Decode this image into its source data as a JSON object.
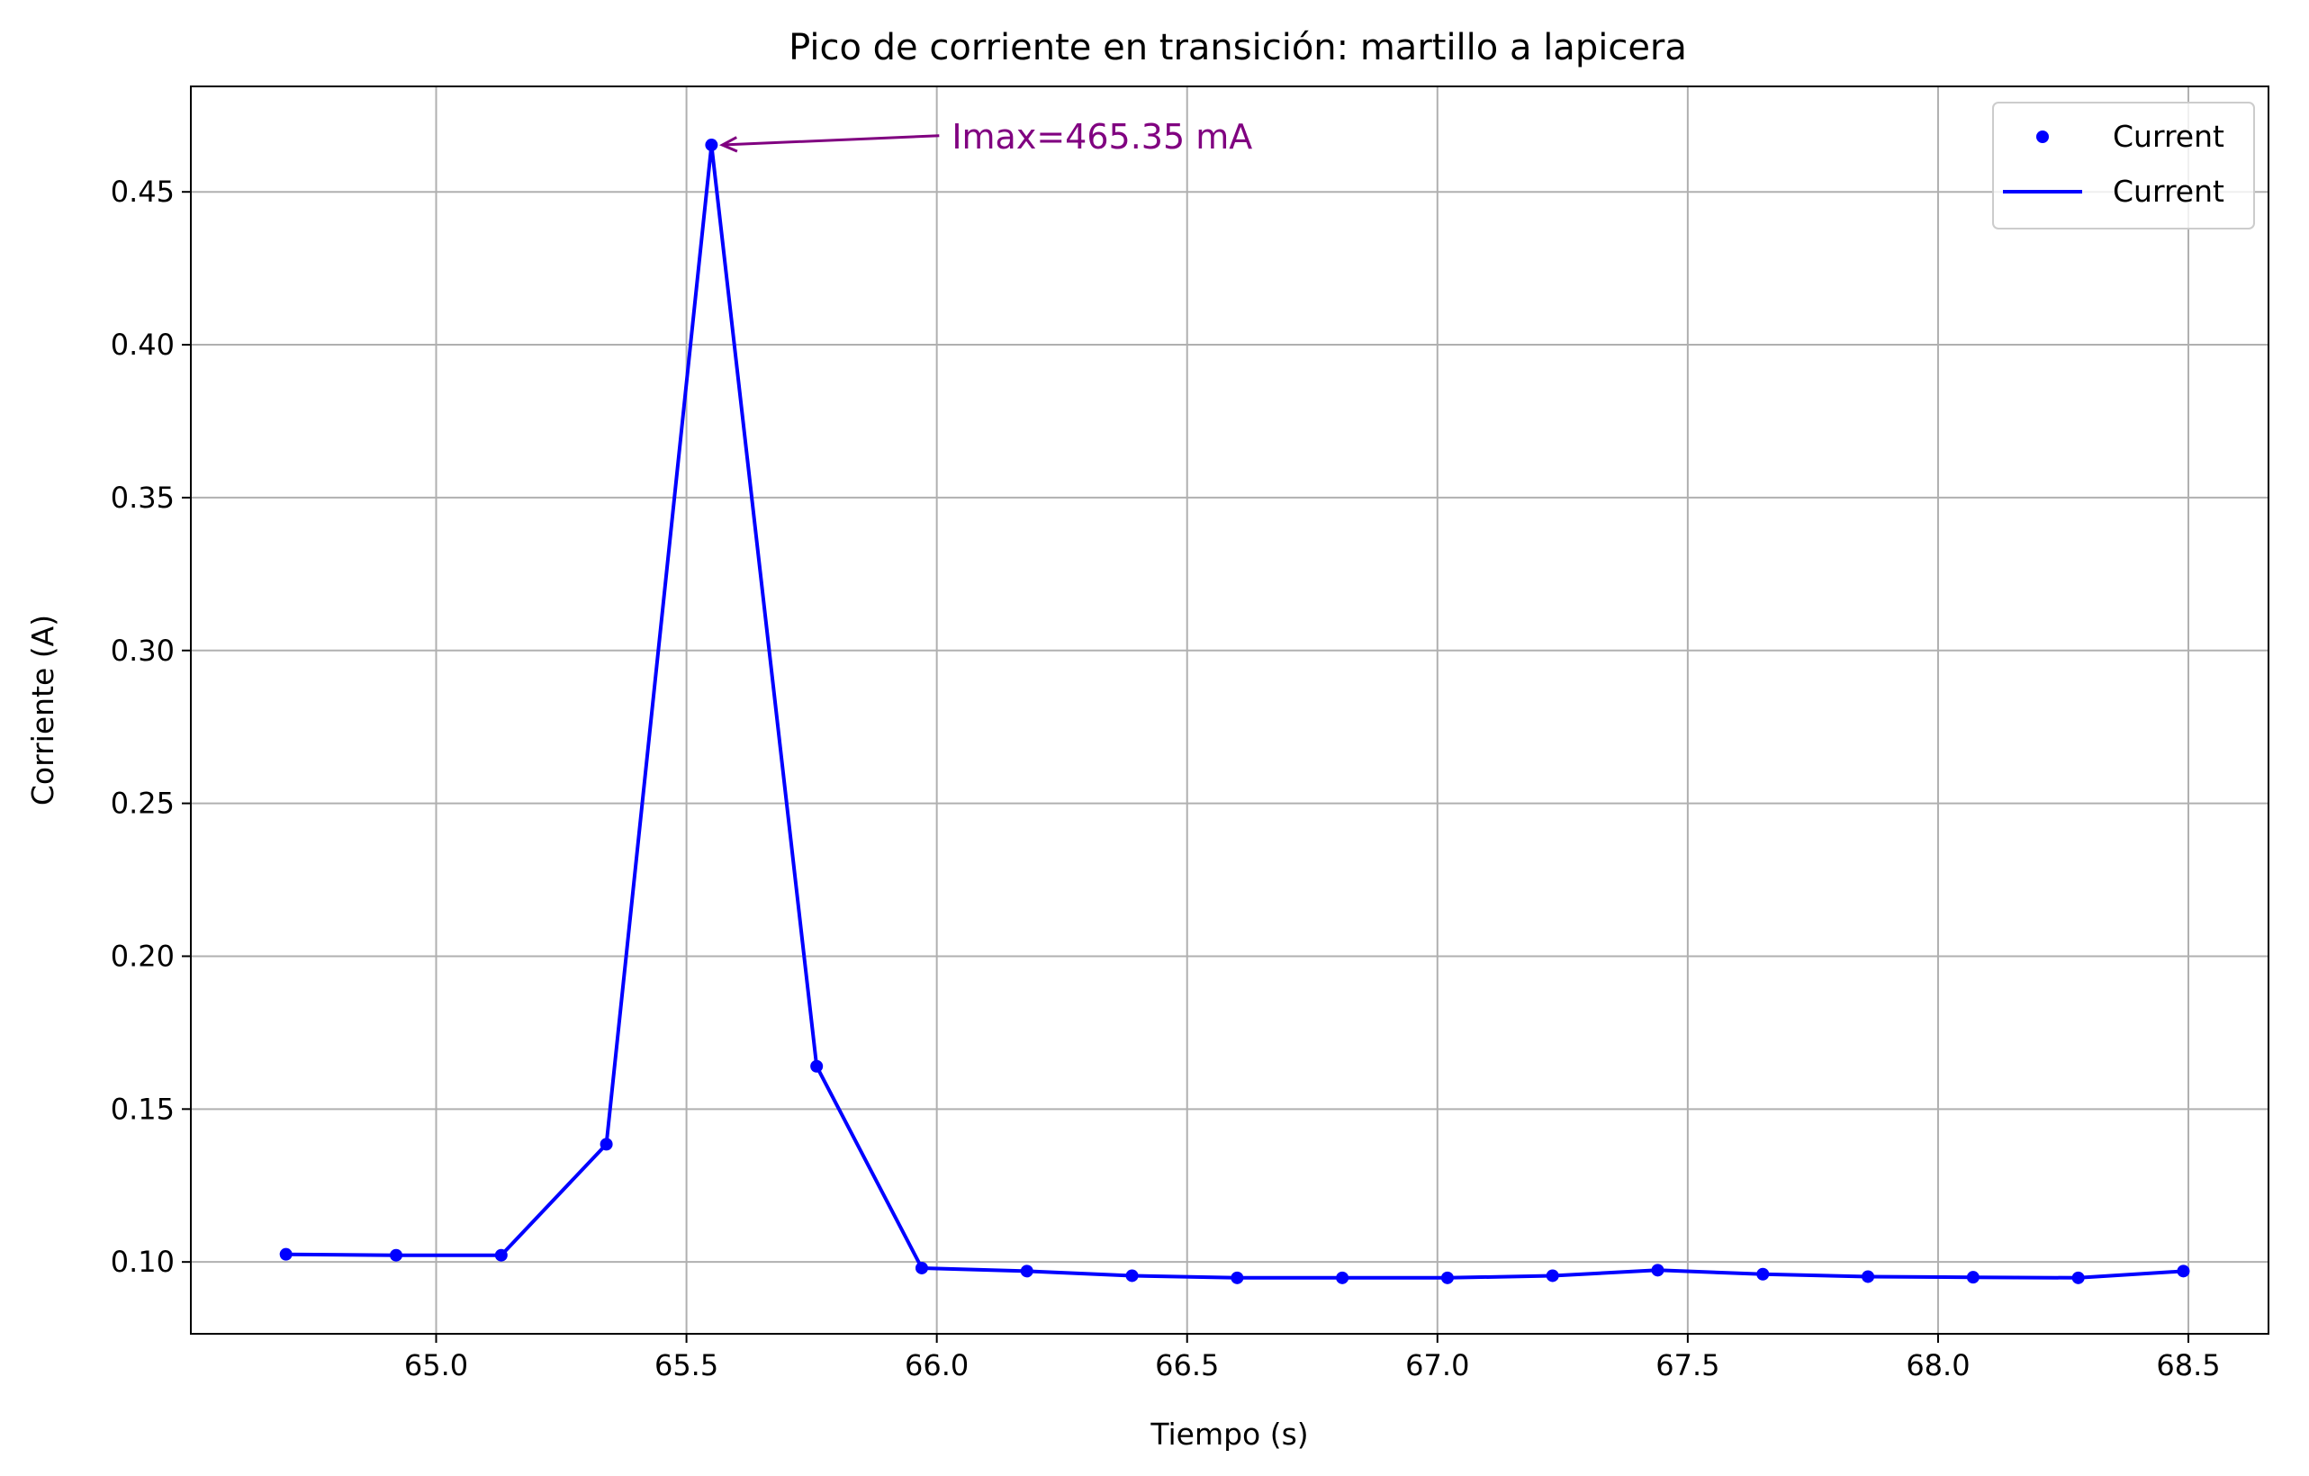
{
  "chart_data": {
    "type": "line",
    "title": "Pico de corriente en transición: martillo a lapicera",
    "xlabel": "Tiempo (s)",
    "ylabel": "Corriente (A)",
    "xlim": [
      64.51,
      68.66
    ],
    "ylim": [
      0.0765,
      0.4845
    ],
    "xticks": [
      65.0,
      65.5,
      66.0,
      66.5,
      67.0,
      67.5,
      68.0,
      68.5
    ],
    "xtick_labels": [
      "65.0",
      "65.5",
      "66.0",
      "66.5",
      "67.0",
      "67.5",
      "68.0",
      "68.5"
    ],
    "yticks": [
      0.1,
      0.15,
      0.2,
      0.25,
      0.3,
      0.35,
      0.4,
      0.45
    ],
    "ytick_labels": [
      "0.10",
      "0.15",
      "0.20",
      "0.25",
      "0.30",
      "0.35",
      "0.40",
      "0.45"
    ],
    "grid": true,
    "legend_position": "top-right",
    "series": [
      {
        "name": "Current",
        "style": "markers",
        "color": "#0000ff",
        "x": [
          64.7,
          64.92,
          65.13,
          65.34,
          65.55,
          65.76,
          65.97,
          66.18,
          66.39,
          66.6,
          66.81,
          67.02,
          67.23,
          67.44,
          67.65,
          67.86,
          68.07,
          68.28,
          68.49
        ],
        "y": [
          0.1025,
          0.1022,
          0.1022,
          0.1385,
          0.46535,
          0.164,
          0.098,
          0.097,
          0.0955,
          0.0948,
          0.0948,
          0.0948,
          0.0955,
          0.0973,
          0.096,
          0.0952,
          0.095,
          0.0948,
          0.097
        ]
      },
      {
        "name": "Current",
        "style": "line",
        "color": "#0000ff",
        "x": [
          64.7,
          64.92,
          65.13,
          65.34,
          65.55,
          65.76,
          65.97,
          66.18,
          66.39,
          66.6,
          66.81,
          67.02,
          67.23,
          67.44,
          67.65,
          67.86,
          68.07,
          68.28,
          68.49
        ],
        "y": [
          0.1025,
          0.1022,
          0.1022,
          0.1385,
          0.46535,
          0.164,
          0.098,
          0.097,
          0.0955,
          0.0948,
          0.0948,
          0.0948,
          0.0955,
          0.0973,
          0.096,
          0.0952,
          0.095,
          0.0948,
          0.097
        ]
      }
    ],
    "annotation": {
      "text": "Imax=465.35 mA",
      "point": [
        65.55,
        0.46535
      ],
      "text_anchor": [
        66.03,
        0.4675
      ],
      "color": "#800080"
    }
  }
}
